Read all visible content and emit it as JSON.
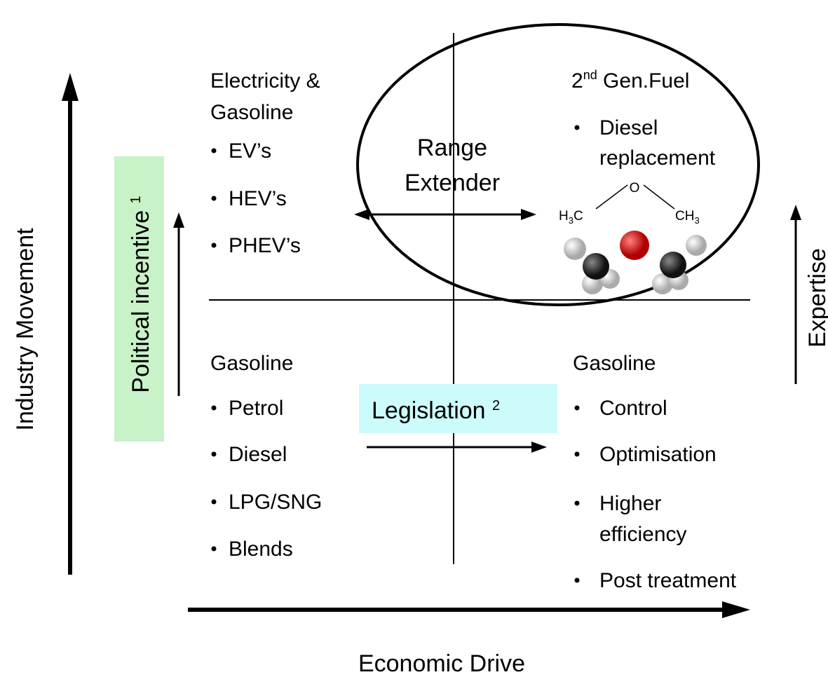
{
  "axes": {
    "x_label": "Economic Drive",
    "y_label": "Industry Movement"
  },
  "side_labels": {
    "political": {
      "text": "Political incentive ",
      "sup": "1"
    },
    "expertise": "Expertise"
  },
  "center": {
    "range_extender": [
      "Range",
      "Extender"
    ],
    "legislation": {
      "text": "Legislation ",
      "sup": "2"
    }
  },
  "quadrants": {
    "top_left": {
      "title": [
        "Electricity &",
        "Gasoline"
      ],
      "items": [
        "EV’s",
        "HEV’s",
        "PHEV’s"
      ]
    },
    "top_right": {
      "title": {
        "pre": "2",
        "sup": "nd",
        "post": " Gen.Fuel"
      },
      "items": [
        [
          "Diesel",
          "replacement"
        ]
      ]
    },
    "bottom_left": {
      "title": "Gasoline",
      "items": [
        "Petrol",
        "Diesel",
        "LPG/SNG",
        "Blends"
      ]
    },
    "bottom_right": {
      "title": "Gasoline",
      "items": [
        [
          "Control"
        ],
        [
          "Optimisation"
        ],
        [
          "Higher",
          "efficiency"
        ],
        [
          "Post treatment"
        ]
      ]
    }
  },
  "molecule": {
    "oxygen": "O",
    "left": {
      "h": "H",
      "sub": "3",
      "c": "C"
    },
    "right": {
      "c": "CH",
      "sub": "3"
    }
  }
}
